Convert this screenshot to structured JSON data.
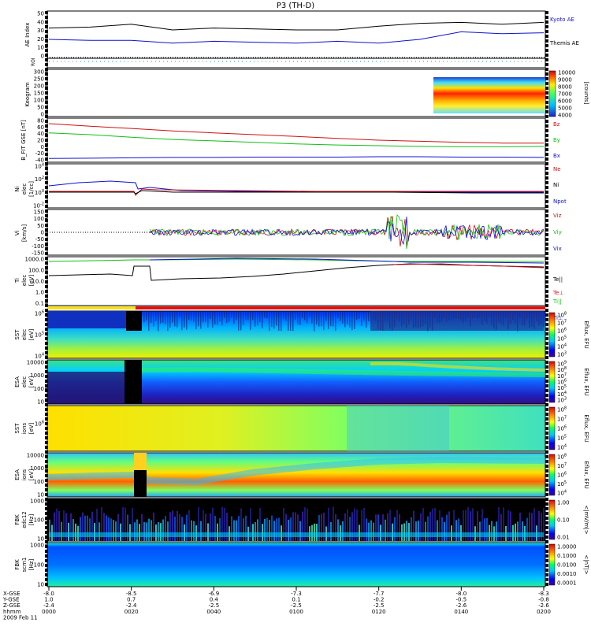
{
  "title": "P3 (TH-D)",
  "chart_data": [
    {
      "type": "line",
      "id": "ae",
      "ylabel": "AE Index",
      "yticks": [
        "50",
        "40",
        "30",
        "20",
        "10",
        "0"
      ],
      "ylim": [
        0,
        50
      ],
      "series": [
        {
          "name": "Kyoto AE",
          "color": "#000000",
          "x": [
            "0000",
            "0010",
            "0020",
            "0030",
            "0040",
            "0050",
            "0100",
            "0110",
            "0120",
            "0130",
            "0140",
            "0150",
            "0200"
          ],
          "values": [
            32,
            33,
            36,
            30,
            32,
            31,
            30,
            30,
            34,
            37,
            38,
            36,
            38
          ]
        },
        {
          "name": "Themis AE",
          "color": "#1010d0",
          "x": [
            "0000",
            "0010",
            "0020",
            "0030",
            "0040",
            "0050",
            "0100",
            "0110",
            "0120",
            "0130",
            "0140",
            "0150",
            "0200"
          ],
          "values": [
            20,
            19,
            19,
            16,
            18,
            17,
            16,
            18,
            16,
            20,
            28,
            26,
            27
          ]
        }
      ]
    },
    {
      "type": "heatmap",
      "id": "roi",
      "ylabel": "ROI"
    },
    {
      "type": "heatmap",
      "id": "keogram",
      "ylabel": "Keogram",
      "yticks": [
        "300",
        "250",
        "200",
        "150",
        "100",
        "50",
        "0"
      ],
      "colorbar": {
        "ticks": [
          "10000",
          "9000",
          "8000",
          "7000",
          "6000",
          "5000",
          "4000"
        ],
        "label": "[counts]"
      }
    },
    {
      "type": "line",
      "id": "bfield",
      "ylabel": "B_FIT GSE [nT]",
      "yticks": [
        "80",
        "60",
        "40",
        "20",
        "0",
        "-20",
        "-40"
      ],
      "ylim": [
        -40,
        80
      ],
      "series": [
        {
          "name": "Bz",
          "color": "#d01010",
          "values": [
            65,
            58,
            52,
            45,
            40,
            35,
            30,
            25,
            20,
            17,
            14,
            12,
            12
          ]
        },
        {
          "name": "By",
          "color": "#10c010",
          "values": [
            40,
            35,
            28,
            22,
            18,
            14,
            10,
            7,
            5,
            3,
            2,
            2,
            3
          ]
        },
        {
          "name": "Bx",
          "color": "#1010d0",
          "values": [
            -30,
            -29,
            -28,
            -27,
            -27,
            -26,
            -26,
            -26,
            -25,
            -25,
            -26,
            -26,
            -27
          ]
        }
      ]
    },
    {
      "type": "line",
      "id": "density",
      "ylabel": "Ni",
      "ylabel2": "elec",
      "ylabel3": "[1/cc]",
      "yticks": [
        "10^4",
        "10^2",
        "10^0",
        "10^-2"
      ],
      "series": [
        {
          "name": "Ne",
          "color": "#d01010"
        },
        {
          "name": "Ni",
          "color": "#000000"
        },
        {
          "name": "Npot",
          "color": "#1010d0"
        }
      ]
    },
    {
      "type": "line",
      "id": "velocity",
      "ylabel": "Vi",
      "ylabel2": "[km/s]",
      "yticks": [
        "150",
        "100",
        "50",
        "0",
        "-50",
        "-100",
        "-150"
      ],
      "ylim": [
        -150,
        150
      ],
      "series": [
        {
          "name": "Viz",
          "color": "#d01010"
        },
        {
          "name": "Viy",
          "color": "#10c010"
        },
        {
          "name": "Vix",
          "color": "#1010d0"
        }
      ]
    },
    {
      "type": "line",
      "id": "temp",
      "ylabel": "Ti",
      "ylabel2": "elec",
      "ylabel3": "[eV]",
      "yticks": [
        "1000.0",
        "100.0",
        "10.0",
        "1.0",
        "0.1"
      ],
      "series": [
        {
          "name": "Te||",
          "color": "#000000"
        },
        {
          "name": "Te⊥",
          "color": "#d01010"
        },
        {
          "name": "Ti||",
          "color": "#10c010"
        },
        {
          "name": "Ti⊥",
          "color": "#1010d0"
        }
      ]
    },
    {
      "type": "heatmap",
      "id": "sst_e",
      "ylabel": "SST",
      "ylabel2": "elec",
      "ylabel3": "[eV]",
      "yticks": [
        "10^6",
        "10^5",
        "10^4"
      ],
      "colorbar": {
        "ticks": [
          "10^8",
          "10^7",
          "10^6",
          "10^5",
          "10^4",
          "10^3"
        ],
        "label": "Eflux, EFU"
      }
    },
    {
      "type": "heatmap",
      "id": "esa_e",
      "ylabel": "ESA",
      "ylabel2": "elec",
      "ylabel3": "[eV]",
      "yticks": [
        "10000",
        "1000",
        "100",
        "10"
      ],
      "colorbar": {
        "ticks": [
          "10^9",
          "10^8",
          "10^7",
          "10^6",
          "10^5",
          "10^4",
          "10^3"
        ],
        "label": "Eflux, EFU"
      }
    },
    {
      "type": "heatmap",
      "id": "sst_i",
      "ylabel": "SST",
      "ylabel2": "ions",
      "ylabel3": "[eV]",
      "yticks": [
        "10^6"
      ],
      "colorbar": {
        "ticks": [
          "10^8",
          "10^7",
          "10^6",
          "10^5",
          "10^4"
        ],
        "label": "Eflux, EFU"
      }
    },
    {
      "type": "heatmap",
      "id": "esa_i",
      "ylabel": "ESA",
      "ylabel2": "ions",
      "ylabel3": "[eV]",
      "yticks": [
        "10000",
        "1000",
        "100",
        "10"
      ],
      "colorbar": {
        "ticks": [
          "10^8",
          "10^7",
          "10^6",
          "10^5",
          "10^4"
        ],
        "label": "Eflux, EFU"
      }
    },
    {
      "type": "heatmap",
      "id": "fbk_e",
      "ylabel": "FBK",
      "ylabel2": "edc12",
      "ylabel3": "[Hz]",
      "yticks": [
        "1000",
        "100",
        "10"
      ],
      "colorbar": {
        "ticks": [
          "1.00",
          "0.10",
          "0.01"
        ],
        "label": "<|mV/m|>"
      }
    },
    {
      "type": "heatmap",
      "id": "fbk_b",
      "ylabel": "FBK",
      "ylabel2": "scm1",
      "ylabel3": "[Hz]",
      "yticks": [
        "1000",
        "100",
        "10"
      ],
      "colorbar": {
        "ticks": [
          "1.0000",
          "0.1000",
          "0.0100",
          "0.0010",
          "0.0001"
        ],
        "label": "<|nT|>"
      }
    }
  ],
  "xaxis": {
    "row_labels": [
      "X-GSE",
      "Y-GSE",
      "Z-GSE",
      "hhmm",
      "2009 Feb 11"
    ],
    "ticks": [
      {
        "x": "-8.0",
        "y": "1.0",
        "z": "-2.4",
        "t": "0000"
      },
      {
        "x": "-8.5",
        "y": "0.7",
        "z": "-2.4",
        "t": "0020"
      },
      {
        "x": "-6.9",
        "y": "0.4",
        "z": "-2.5",
        "t": "0040"
      },
      {
        "x": "-7.3",
        "y": "0.1",
        "z": "-2.5",
        "t": "0100"
      },
      {
        "x": "-7.7",
        "y": "-0.2",
        "z": "-2.5",
        "t": "0120"
      },
      {
        "x": "-8.0",
        "y": "-0.5",
        "z": "-2.6",
        "t": "0140"
      },
      {
        "x": "-8.3",
        "y": "-0.8",
        "z": "-2.6",
        "t": "0200"
      }
    ]
  },
  "colors": {
    "red_bar": "#e01010",
    "yellow_bar": "#f5e020",
    "frame": "#000000"
  }
}
